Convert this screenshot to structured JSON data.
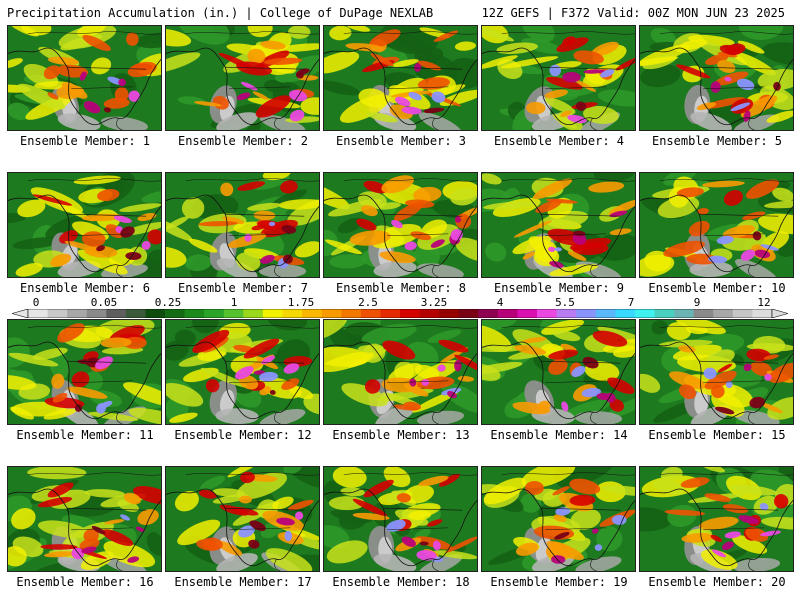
{
  "header": {
    "left": "Precipitation Accumulation (in.) | College of DuPage NEXLAB",
    "right": "12Z GEFS | F372 Valid: 00Z MON JUN 23 2025"
  },
  "panels": [
    {
      "label": "Ensemble Member: 1"
    },
    {
      "label": "Ensemble Member: 2"
    },
    {
      "label": "Ensemble Member: 3"
    },
    {
      "label": "Ensemble Member: 4"
    },
    {
      "label": "Ensemble Member: 5"
    },
    {
      "label": "Ensemble Member: 6"
    },
    {
      "label": "Ensemble Member: 7"
    },
    {
      "label": "Ensemble Member: 8"
    },
    {
      "label": "Ensemble Member: 9"
    },
    {
      "label": "Ensemble Member: 10"
    },
    {
      "label": "Ensemble Member: 11"
    },
    {
      "label": "Ensemble Member: 12"
    },
    {
      "label": "Ensemble Member: 13"
    },
    {
      "label": "Ensemble Member: 14"
    },
    {
      "label": "Ensemble Member: 15"
    },
    {
      "label": "Ensemble Member: 16"
    },
    {
      "label": "Ensemble Member: 17"
    },
    {
      "label": "Ensemble Member: 18"
    },
    {
      "label": "Ensemble Member: 19"
    },
    {
      "label": "Ensemble Member: 20"
    }
  ],
  "colorbar": {
    "ticks": [
      "0",
      "0.05",
      "0.25",
      "1",
      "1.75",
      "2.5",
      "3.25",
      "4",
      "5.5",
      "7",
      "9",
      "12"
    ],
    "colors": [
      "#e6e6e6",
      "#c8c8c8",
      "#a8a8a8",
      "#8a8a8a",
      "#5e5e5e",
      "#3a5a3a",
      "#0e4d0e",
      "#136b13",
      "#1b8a1b",
      "#2aa52a",
      "#56c12e",
      "#9ad81c",
      "#f2f200",
      "#f5d800",
      "#f8b800",
      "#f89a00",
      "#f27800",
      "#ee5200",
      "#e62a00",
      "#d40000",
      "#b40000",
      "#960000",
      "#7a0016",
      "#8e0050",
      "#b8007a",
      "#da10b0",
      "#ea48e0",
      "#b87cf2",
      "#8a94ff",
      "#5ab8ff",
      "#38d8ff",
      "#3ef0f0",
      "#48d0c0",
      "#6ab4b4",
      "#8a8a8a",
      "#a8a8a8",
      "#c6c6c6",
      "#dddddd"
    ]
  }
}
